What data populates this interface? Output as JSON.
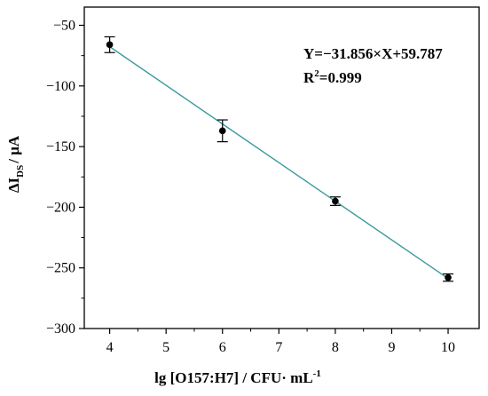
{
  "chart_data": {
    "type": "scatter",
    "xlabel_main": "lg [O157:H7] / CFU· mL",
    "xlabel_sup": "-1",
    "ylabel_main": "ΔI",
    "ylabel_sub": "DS",
    "ylabel_rest": "/ μA",
    "xlim": [
      3.55,
      10.55
    ],
    "ylim": [
      -300,
      -35
    ],
    "x_ticks": [
      4,
      5,
      6,
      7,
      8,
      9,
      10
    ],
    "y_ticks": [
      -50,
      -100,
      -150,
      -200,
      -250,
      -300
    ],
    "points": [
      {
        "x": 4,
        "y": -66,
        "err": 6.5
      },
      {
        "x": 6,
        "y": -137,
        "err": 9
      },
      {
        "x": 8,
        "y": -195,
        "err": 3.5
      },
      {
        "x": 10,
        "y": -258,
        "err": 3
      }
    ],
    "fit": {
      "slope": -31.856,
      "intercept": 59.787,
      "x_range": [
        4,
        10
      ]
    },
    "annotations": {
      "equation": "Y=−31.856×X+59.787",
      "r2_prefix": "R",
      "r2_sup": "2",
      "r2_value": "=0.999"
    },
    "colors": {
      "fit_line": "#3a9aa0",
      "points": "#000000",
      "axes": "#000000"
    }
  }
}
